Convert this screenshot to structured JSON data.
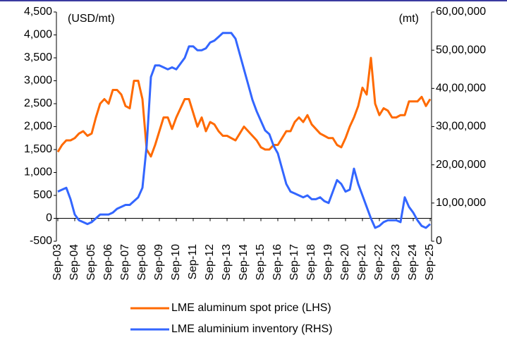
{
  "chart_data": {
    "type": "line",
    "annotations": [
      "(USD/mt)",
      "(mt)"
    ],
    "categories": [
      "Sep-03",
      null,
      null,
      null,
      "Sep-04",
      null,
      null,
      null,
      "Sep-05",
      null,
      null,
      null,
      "Sep-06",
      null,
      null,
      null,
      "Sep-07",
      null,
      null,
      null,
      "Sep-08",
      null,
      null,
      null,
      "Sep-09",
      null,
      null,
      null,
      "Sep-10",
      null,
      null,
      null,
      "Sep-11",
      null,
      null,
      null,
      "Sep-12",
      null,
      null,
      null,
      "Sep-13",
      null,
      null,
      null,
      "Sep-14",
      null,
      null,
      null,
      "Sep-15",
      null,
      null,
      null,
      "Sep-16",
      null,
      null,
      null,
      "Sep-17",
      null,
      null,
      null,
      "Sep-18",
      null,
      null,
      null,
      "Sep-19",
      null,
      null,
      null,
      "Sep-20",
      null,
      null,
      null,
      "Sep-21",
      null,
      null,
      null,
      "Sep-22",
      null,
      null,
      null,
      "Sep-23",
      null,
      null,
      null,
      "Sep-24",
      null,
      null,
      null,
      "Sep-25"
    ],
    "series": [
      {
        "name": "LME aluminum spot price (LHS)",
        "color": "#ff6a00",
        "axis": "y",
        "values": [
          1450,
          1600,
          1700,
          1700,
          1750,
          1850,
          1900,
          1800,
          1850,
          2200,
          2500,
          2600,
          2500,
          2800,
          2800,
          2700,
          2450,
          2400,
          3000,
          3000,
          2600,
          1500,
          1350,
          1600,
          1900,
          2200,
          2200,
          1950,
          2200,
          2400,
          2600,
          2600,
          2300,
          2000,
          2200,
          1900,
          2100,
          2050,
          1900,
          1800,
          1800,
          1750,
          1700,
          1850,
          2000,
          1900,
          1800,
          1700,
          1550,
          1500,
          1500,
          1600,
          1600,
          1750,
          1900,
          1900,
          2100,
          2200,
          2100,
          2250,
          2050,
          1950,
          1850,
          1800,
          1750,
          1750,
          1600,
          1550,
          1750,
          2000,
          2200,
          2450,
          2850,
          2700,
          3500,
          2500,
          2250,
          2400,
          2350,
          2200,
          2200,
          2250,
          2250,
          2550,
          2550,
          2550,
          2650,
          2450,
          2600
        ]
      },
      {
        "name": "LME aluminium inventory (RHS)",
        "color": "#3366ff",
        "axis": "y2",
        "values": [
          1300000,
          1350000,
          1400000,
          1100000,
          700000,
          550000,
          500000,
          450000,
          500000,
          600000,
          700000,
          700000,
          700000,
          750000,
          850000,
          900000,
          950000,
          950000,
          1050000,
          1150000,
          1400000,
          2500000,
          4300000,
          4600000,
          4600000,
          4550000,
          4500000,
          4550000,
          4500000,
          4650000,
          4800000,
          5100000,
          5100000,
          5000000,
          5000000,
          5050000,
          5200000,
          5250000,
          5350000,
          5450000,
          5450000,
          5450000,
          5300000,
          4900000,
          4500000,
          4100000,
          3700000,
          3400000,
          3150000,
          2900000,
          2800000,
          2500000,
          2300000,
          1900000,
          1500000,
          1300000,
          1250000,
          1200000,
          1150000,
          1200000,
          1100000,
          1100000,
          1150000,
          1050000,
          1000000,
          1300000,
          1600000,
          1500000,
          1300000,
          1350000,
          1900000,
          1500000,
          1200000,
          900000,
          600000,
          350000,
          400000,
          500000,
          550000,
          550000,
          550000,
          500000,
          1150000,
          900000,
          750000,
          550000,
          400000,
          350000,
          450000
        ]
      }
    ],
    "ylim": [
      -500,
      4500
    ],
    "yticks": [
      -500,
      0,
      500,
      {
        "value": 1000,
        "label": "1,000"
      },
      {
        "value": 1500,
        "label": "1,500"
      },
      {
        "value": 2000,
        "label": "2,000"
      },
      {
        "value": 2500,
        "label": "2,500"
      },
      {
        "value": 3000,
        "label": "3,000"
      },
      {
        "value": 3500,
        "label": "3,500"
      },
      {
        "value": 4000,
        "label": "4,000"
      },
      {
        "value": 4500,
        "label": "4,500"
      }
    ],
    "y2lim": [
      0,
      6000000
    ],
    "y2ticks": [
      0,
      {
        "value": 1000000,
        "label": "10,00,000"
      },
      {
        "value": 2000000,
        "label": "20,00,000"
      },
      {
        "value": 3000000,
        "label": "30,00,000"
      },
      {
        "value": 4000000,
        "label": "40,00,000"
      },
      {
        "value": 5000000,
        "label": "50,00,000"
      },
      {
        "value": 6000000,
        "label": "60,00,000"
      }
    ],
    "grid": false
  }
}
